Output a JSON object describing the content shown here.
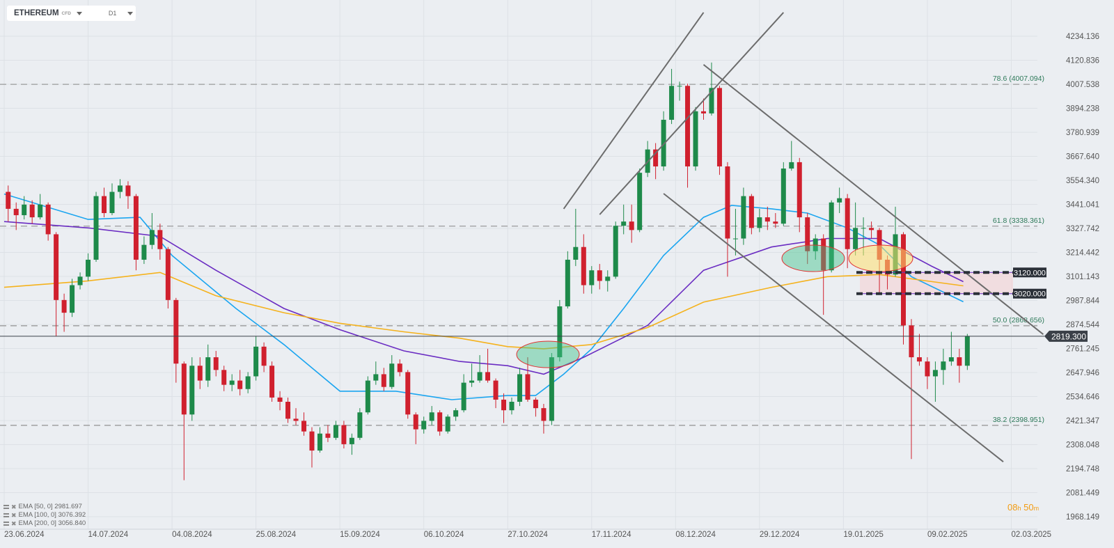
{
  "header": {
    "symbol": "ETHEREUM",
    "symbol_suffix": "CFD",
    "timeframe": "D1"
  },
  "legend": [
    {
      "label": "EMA [50,  0] 2981.697"
    },
    {
      "label": "EMA [100,  0] 3076.392"
    },
    {
      "label": "EMA [200,  0] 3056.840"
    }
  ],
  "timer": {
    "hours": "08",
    "h": "h",
    "minutes": "50",
    "m": "m"
  },
  "colors": {
    "up": "#1e8a4a",
    "down": "#d0202e",
    "ema50": "#1aa5f0",
    "ema100": "#6a2cc2",
    "ema200": "#f5b21c",
    "background": "#ebeef2"
  },
  "chart_data": {
    "type": "candlestick",
    "instrument": "ETHEREUM",
    "grid": true,
    "y_axis_ticks": [
      "4234.136",
      "4120.836",
      "4007.538",
      "3894.238",
      "3780.939",
      "3667.640",
      "3554.340",
      "3441.041",
      "3327.742",
      "3214.442",
      "3101.143",
      "2987.844",
      "2874.544",
      "2761.245",
      "2647.946",
      "2534.646",
      "2421.347",
      "2308.048",
      "2194.748",
      "2081.449",
      "1968.149"
    ],
    "x_axis_ticks": [
      "23.06.2024",
      "14.07.2024",
      "04.08.2024",
      "25.08.2024",
      "15.09.2024",
      "06.10.2024",
      "27.10.2024",
      "17.11.2024",
      "08.12.2024",
      "29.12.2024",
      "19.01.2025",
      "09.02.2025",
      "02.03.2025"
    ],
    "ylim": [
      1968.149,
      4234.136
    ],
    "start_date": "23.06.2024",
    "candle_period_days": 2,
    "candles_ohlc": [
      [
        3500,
        3530,
        3360,
        3420
      ],
      [
        3420,
        3450,
        3320,
        3390
      ],
      [
        3390,
        3480,
        3370,
        3440
      ],
      [
        3440,
        3460,
        3350,
        3380
      ],
      [
        3380,
        3490,
        3370,
        3440
      ],
      [
        3440,
        3450,
        3270,
        3300
      ],
      [
        3300,
        3310,
        2820,
        2990
      ],
      [
        2990,
        3020,
        2840,
        2930
      ],
      [
        2930,
        3090,
        2910,
        3060
      ],
      [
        3060,
        3120,
        3040,
        3100
      ],
      [
        3100,
        3210,
        3080,
        3180
      ],
      [
        3180,
        3500,
        3170,
        3480
      ],
      [
        3480,
        3520,
        3380,
        3400
      ],
      [
        3400,
        3540,
        3390,
        3500
      ],
      [
        3500,
        3560,
        3470,
        3530
      ],
      [
        3530,
        3550,
        3420,
        3480
      ],
      [
        3480,
        3490,
        3130,
        3180
      ],
      [
        3180,
        3290,
        3160,
        3250
      ],
      [
        3250,
        3400,
        3230,
        3320
      ],
      [
        3320,
        3350,
        3180,
        3230
      ],
      [
        3230,
        3240,
        2950,
        2990
      ],
      [
        2990,
        3000,
        2600,
        2690
      ],
      [
        2690,
        2700,
        2140,
        2450
      ],
      [
        2450,
        2720,
        2420,
        2680
      ],
      [
        2680,
        2720,
        2570,
        2610
      ],
      [
        2610,
        2780,
        2580,
        2720
      ],
      [
        2720,
        2750,
        2630,
        2660
      ],
      [
        2660,
        2680,
        2560,
        2590
      ],
      [
        2590,
        2640,
        2560,
        2610
      ],
      [
        2610,
        2660,
        2540,
        2570
      ],
      [
        2570,
        2650,
        2550,
        2630
      ],
      [
        2630,
        2820,
        2610,
        2770
      ],
      [
        2770,
        2790,
        2650,
        2680
      ],
      [
        2680,
        2700,
        2510,
        2530
      ],
      [
        2530,
        2560,
        2470,
        2510
      ],
      [
        2510,
        2530,
        2410,
        2430
      ],
      [
        2430,
        2480,
        2400,
        2420
      ],
      [
        2420,
        2460,
        2350,
        2370
      ],
      [
        2370,
        2390,
        2200,
        2280
      ],
      [
        2280,
        2390,
        2270,
        2360
      ],
      [
        2360,
        2400,
        2320,
        2340
      ],
      [
        2340,
        2420,
        2330,
        2400
      ],
      [
        2400,
        2420,
        2290,
        2310
      ],
      [
        2310,
        2360,
        2260,
        2340
      ],
      [
        2340,
        2480,
        2330,
        2460
      ],
      [
        2460,
        2630,
        2450,
        2610
      ],
      [
        2610,
        2700,
        2590,
        2640
      ],
      [
        2640,
        2670,
        2560,
        2580
      ],
      [
        2580,
        2730,
        2570,
        2690
      ],
      [
        2690,
        2710,
        2630,
        2650
      ],
      [
        2650,
        2660,
        2430,
        2450
      ],
      [
        2450,
        2460,
        2310,
        2380
      ],
      [
        2380,
        2440,
        2360,
        2420
      ],
      [
        2420,
        2490,
        2400,
        2460
      ],
      [
        2460,
        2470,
        2350,
        2370
      ],
      [
        2370,
        2450,
        2360,
        2440
      ],
      [
        2440,
        2480,
        2420,
        2470
      ],
      [
        2470,
        2640,
        2460,
        2600
      ],
      [
        2600,
        2690,
        2580,
        2610
      ],
      [
        2610,
        2730,
        2600,
        2650
      ],
      [
        2650,
        2760,
        2600,
        2610
      ],
      [
        2610,
        2620,
        2480,
        2520
      ],
      [
        2520,
        2550,
        2410,
        2470
      ],
      [
        2470,
        2530,
        2450,
        2510
      ],
      [
        2510,
        2670,
        2490,
        2640
      ],
      [
        2640,
        2720,
        2510,
        2520
      ],
      [
        2520,
        2530,
        2440,
        2480
      ],
      [
        2480,
        2500,
        2360,
        2420
      ],
      [
        2420,
        2740,
        2400,
        2720
      ],
      [
        2720,
        2990,
        2700,
        2960
      ],
      [
        2960,
        3220,
        2950,
        3180
      ],
      [
        3180,
        3420,
        3150,
        3240
      ],
      [
        3240,
        3300,
        3020,
        3060
      ],
      [
        3060,
        3150,
        3020,
        3130
      ],
      [
        3130,
        3160,
        3040,
        3080
      ],
      [
        3080,
        3130,
        3030,
        3100
      ],
      [
        3100,
        3360,
        3090,
        3340
      ],
      [
        3340,
        3440,
        3300,
        3360
      ],
      [
        3360,
        3440,
        3260,
        3320
      ],
      [
        3320,
        3610,
        3310,
        3590
      ],
      [
        3590,
        3740,
        3570,
        3700
      ],
      [
        3700,
        3730,
        3560,
        3620
      ],
      [
        3620,
        3880,
        3600,
        3840
      ],
      [
        3840,
        4080,
        3820,
        4000
      ],
      [
        4000,
        4020,
        3930,
        4000
      ],
      [
        4000,
        4010,
        3520,
        3620
      ],
      [
        3620,
        3900,
        3600,
        3880
      ],
      [
        3880,
        3940,
        3840,
        3870
      ],
      [
        3870,
        4110,
        3860,
        3990
      ],
      [
        3990,
        4000,
        3580,
        3620
      ],
      [
        3620,
        3640,
        3100,
        3280
      ],
      [
        3280,
        3420,
        3200,
        3280
      ],
      [
        3280,
        3520,
        3250,
        3480
      ],
      [
        3480,
        3490,
        3300,
        3330
      ],
      [
        3330,
        3420,
        3310,
        3380
      ],
      [
        3380,
        3430,
        3320,
        3360
      ],
      [
        3360,
        3400,
        3330,
        3350
      ],
      [
        3350,
        3640,
        3340,
        3610
      ],
      [
        3610,
        3740,
        3600,
        3640
      ],
      [
        3640,
        3660,
        3310,
        3380
      ],
      [
        3380,
        3400,
        3160,
        3220
      ],
      [
        3220,
        3300,
        3180,
        3280
      ],
      [
        3280,
        3300,
        2920,
        3130
      ],
      [
        3130,
        3460,
        3120,
        3450
      ],
      [
        3450,
        3520,
        3400,
        3470
      ],
      [
        3470,
        3490,
        3140,
        3230
      ],
      [
        3230,
        3450,
        3200,
        3330
      ],
      [
        3330,
        3380,
        3200,
        3330
      ],
      [
        3330,
        3360,
        3280,
        3320
      ],
      [
        3320,
        3330,
        3020,
        3180
      ],
      [
        3180,
        3200,
        3040,
        3110
      ],
      [
        3110,
        3430,
        3100,
        3300
      ],
      [
        3300,
        3310,
        2780,
        2870
      ],
      [
        2870,
        2900,
        2240,
        2720
      ],
      [
        2720,
        2830,
        2680,
        2700
      ],
      [
        2700,
        2720,
        2570,
        2630
      ],
      [
        2630,
        2700,
        2510,
        2660
      ],
      [
        2660,
        2760,
        2590,
        2700
      ],
      [
        2700,
        2840,
        2680,
        2720
      ],
      [
        2720,
        2760,
        2600,
        2680
      ],
      [
        2680,
        2830,
        2660,
        2819.3
      ]
    ],
    "series": [
      {
        "name": "EMA [50, 0]",
        "color": "#1aa5f0",
        "points": [
          [
            "23.06.2024",
            3490
          ],
          [
            "14.07.2024",
            3370
          ],
          [
            "27.07.2024",
            3380
          ],
          [
            "04.08.2024",
            3200
          ],
          [
            "20.08.2024",
            2950
          ],
          [
            "01.09.2024",
            2780
          ],
          [
            "15.09.2024",
            2560
          ],
          [
            "29.09.2024",
            2560
          ],
          [
            "13.10.2024",
            2520
          ],
          [
            "27.10.2024",
            2540
          ],
          [
            "03.11.2024",
            2540
          ],
          [
            "10.11.2024",
            2640
          ],
          [
            "17.11.2024",
            2760
          ],
          [
            "25.11.2024",
            2950
          ],
          [
            "05.12.2024",
            3200
          ],
          [
            "15.12.2024",
            3380
          ],
          [
            "22.12.2024",
            3436
          ],
          [
            "01.01.2025",
            3420
          ],
          [
            "10.01.2025",
            3400
          ],
          [
            "20.01.2025",
            3330
          ],
          [
            "28.01.2025",
            3250
          ],
          [
            "05.02.2025",
            3100
          ],
          [
            "18.02.2025",
            2981.697
          ]
        ]
      },
      {
        "name": "EMA [100, 0]",
        "color": "#6a2cc2",
        "points": [
          [
            "23.06.2024",
            3360
          ],
          [
            "14.07.2024",
            3330
          ],
          [
            "01.08.2024",
            3290
          ],
          [
            "15.08.2024",
            3130
          ],
          [
            "01.09.2024",
            2950
          ],
          [
            "15.09.2024",
            2850
          ],
          [
            "01.10.2024",
            2750
          ],
          [
            "15.10.2024",
            2700
          ],
          [
            "27.10.2024",
            2680
          ],
          [
            "05.11.2024",
            2640
          ],
          [
            "15.11.2024",
            2720
          ],
          [
            "01.12.2024",
            2870
          ],
          [
            "15.12.2024",
            3130
          ],
          [
            "01.01.2025",
            3240
          ],
          [
            "15.01.2025",
            3280
          ],
          [
            "28.01.2025",
            3280
          ],
          [
            "10.02.2025",
            3150
          ],
          [
            "18.02.2025",
            3076.392
          ]
        ]
      },
      {
        "name": "EMA [200, 0]",
        "color": "#f5b21c",
        "points": [
          [
            "23.06.2024",
            3050
          ],
          [
            "14.07.2024",
            3080
          ],
          [
            "01.08.2024",
            3120
          ],
          [
            "15.08.2024",
            3010
          ],
          [
            "01.09.2024",
            2930
          ],
          [
            "15.09.2024",
            2880
          ],
          [
            "01.10.2024",
            2840
          ],
          [
            "15.10.2024",
            2810
          ],
          [
            "27.10.2024",
            2770
          ],
          [
            "05.11.2024",
            2760
          ],
          [
            "17.11.2024",
            2780
          ],
          [
            "01.12.2024",
            2860
          ],
          [
            "15.12.2024",
            2980
          ],
          [
            "01.01.2025",
            3050
          ],
          [
            "15.01.2025",
            3100
          ],
          [
            "28.01.2025",
            3110
          ],
          [
            "18.02.2025",
            3056.84
          ]
        ]
      }
    ],
    "fib_levels": [
      {
        "label": "78.6 (4007.094)",
        "price": 4007.094
      },
      {
        "label": "61.8 (3338.361)",
        "price": 3338.361
      },
      {
        "label": "50.0 (2868.656)",
        "price": 2868.656
      },
      {
        "label": "38.2 (2398.951)",
        "price": 2398.951
      }
    ],
    "levels": [
      {
        "label": "3120.000",
        "price": 3120.0
      },
      {
        "label": "3020.000",
        "price": 3020.0
      }
    ],
    "current_price": {
      "label": "2819.300",
      "price": 2819.3
    },
    "trendlines": [
      {
        "from": [
          "10.11.2024",
          3420
        ],
        "to": [
          "15.12.2024",
          4346
        ]
      },
      {
        "from": [
          "19.11.2024",
          3393
        ],
        "to": [
          "04.01.2025",
          4346
        ]
      },
      {
        "from": [
          "15.12.2024",
          4100
        ],
        "to": [
          "10.03.2025",
          2828
        ]
      },
      {
        "from": [
          "05.12.2024",
          3492
        ],
        "to": [
          "28.02.2025",
          2227
        ]
      }
    ]
  }
}
